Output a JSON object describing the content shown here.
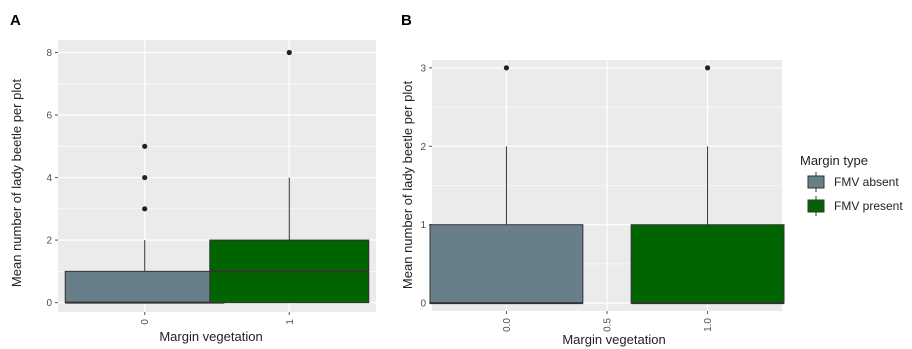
{
  "chart_data": [
    {
      "panel": "A",
      "type": "box",
      "xlabel": "Margin vegetation",
      "ylabel": "Mean number of lady beetle per plot",
      "ylim": [
        -0.3,
        8.4
      ],
      "yticks": [
        0,
        2,
        4,
        6,
        8
      ],
      "xlim": [
        0.4,
        2.6
      ],
      "xticks": [
        {
          "pos": 1,
          "label": "0"
        },
        {
          "pos": 2,
          "label": "1"
        }
      ],
      "grid": true,
      "boxes": [
        {
          "pos": 1,
          "group": "FMV absent",
          "q1": 0,
          "median": 0,
          "q3": 1,
          "whisker_low": 0,
          "whisker_high": 2,
          "outliers": [
            3,
            4,
            5
          ]
        },
        {
          "pos": 2,
          "group": "FMV present",
          "q1": 0,
          "median": 1,
          "q3": 2,
          "whisker_low": 0,
          "whisker_high": 4,
          "outliers": [
            8
          ]
        }
      ]
    },
    {
      "panel": "B",
      "type": "box",
      "xlabel": "Margin vegetation",
      "ylabel": "Mean number of lady beetle per plot",
      "ylim": [
        -0.1,
        3.1
      ],
      "yticks": [
        0,
        1,
        2,
        3
      ],
      "xlim": [
        -0.37,
        1.37
      ],
      "xticks": [
        {
          "pos": 0,
          "label": "0.0"
        },
        {
          "pos": 0.5,
          "label": "0.5"
        },
        {
          "pos": 1,
          "label": "1.0"
        }
      ],
      "grid": true,
      "boxes": [
        {
          "pos": 0,
          "group": "FMV absent",
          "q1": 0,
          "median": 0,
          "q3": 1,
          "whisker_low": 0,
          "whisker_high": 2,
          "outliers": [
            3
          ]
        },
        {
          "pos": 1,
          "group": "FMV present",
          "q1": 0,
          "median": 0,
          "q3": 1,
          "whisker_low": 0,
          "whisker_high": 2,
          "outliers": [
            3
          ]
        }
      ]
    }
  ],
  "legend": {
    "title": "Margin type",
    "placement": "right",
    "items": [
      {
        "label": "FMV absent",
        "color": "#687f8a"
      },
      {
        "label": "FMV present",
        "color": "#006400"
      }
    ]
  },
  "colors": {
    "panel_bg": "#ebebeb",
    "grid": "#ffffff",
    "outline": "#333333"
  }
}
